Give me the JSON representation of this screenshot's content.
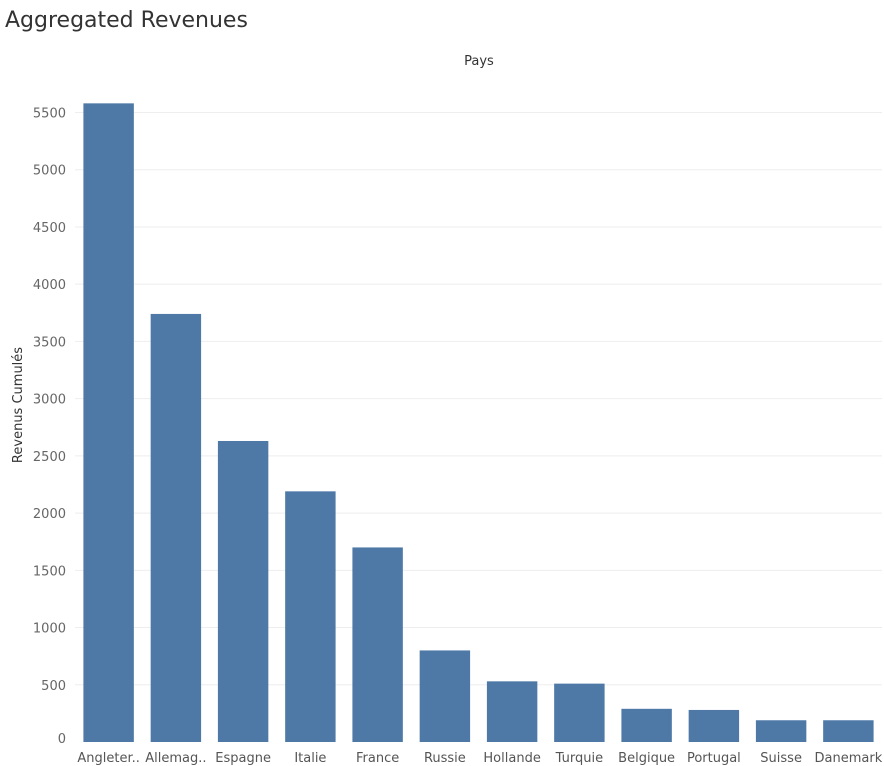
{
  "title": "Aggregated Revenues",
  "chart_data": {
    "type": "bar",
    "title": "Aggregated Revenues",
    "xlabel": "Pays",
    "ylabel": "Revenus Cumulés",
    "categories": [
      "Angleter..",
      "Allemag..",
      "Espagne",
      "Italie",
      "France",
      "Russie",
      "Hollande",
      "Turquie",
      "Belgique",
      "Portugal",
      "Suisse",
      "Danemark"
    ],
    "values": [
      5580,
      3740,
      2630,
      2190,
      1700,
      800,
      530,
      510,
      290,
      280,
      190,
      190
    ],
    "yticks": [
      0,
      500,
      1000,
      1500,
      2000,
      2500,
      3000,
      3500,
      4000,
      4500,
      5000,
      5500
    ],
    "ylim": [
      0,
      5500
    ],
    "grid": true,
    "bar_color": "#4e79a7",
    "grid_color": "#eeeeee"
  }
}
